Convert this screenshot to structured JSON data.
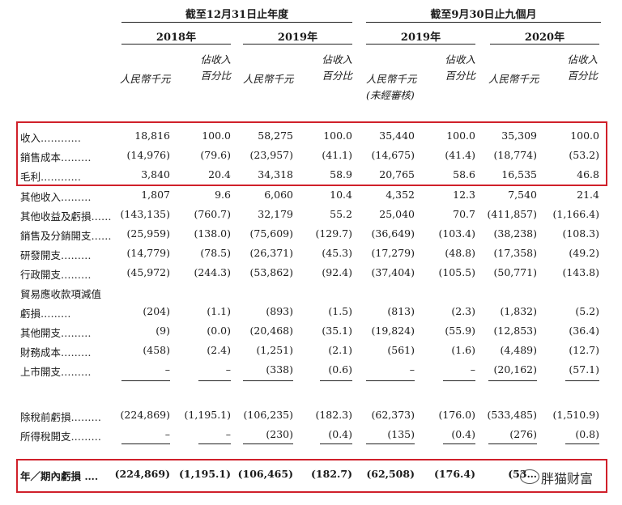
{
  "header": {
    "group1": "截至12月31日止年度",
    "group2": "截至9月30日止九個月",
    "years": [
      "2018年",
      "2019年",
      "2019年",
      "2020年"
    ]
  },
  "subheaders": [
    {
      "lines": [
        "人民幣千元"
      ]
    },
    {
      "lines": [
        "佔收入",
        "百分比"
      ]
    },
    {
      "lines": [
        "人民幣千元"
      ]
    },
    {
      "lines": [
        "佔收入",
        "百分比"
      ]
    },
    {
      "lines": [
        "人民幣千元",
        "(未經審核)"
      ]
    },
    {
      "lines": [
        "佔收入",
        "百分比"
      ]
    },
    {
      "lines": [
        "人民幣千元"
      ]
    },
    {
      "lines": [
        "佔收入",
        "百分比"
      ]
    }
  ],
  "rows": [
    {
      "label": "收入…………",
      "values": [
        "18,816",
        "100.0",
        "58,275",
        "100.0",
        "35,440",
        "100.0",
        "35,309",
        "100.0"
      ]
    },
    {
      "label": "銷售成本………",
      "values": [
        "(14,976)",
        "(79.6)",
        "(23,957)",
        "(41.1)",
        "(14,675)",
        "(41.4)",
        "(18,774)",
        "(53.2)"
      ]
    },
    {
      "label": "毛利…………",
      "values": [
        "3,840",
        "20.4",
        "34,318",
        "58.9",
        "20,765",
        "58.6",
        "16,535",
        "46.8"
      ]
    },
    {
      "label": "其他收入………",
      "values": [
        "1,807",
        "9.6",
        "6,060",
        "10.4",
        "4,352",
        "12.3",
        "7,540",
        "21.4"
      ]
    },
    {
      "label": "其他收益及虧損……",
      "values": [
        "(143,135)",
        "(760.7)",
        "32,179",
        "55.2",
        "25,040",
        "70.7",
        "(411,857)",
        "(1,166.4)"
      ]
    },
    {
      "label": "銷售及分銷開支……",
      "values": [
        "(25,959)",
        "(138.0)",
        "(75,609)",
        "(129.7)",
        "(36,649)",
        "(103.4)",
        "(38,238)",
        "(108.3)"
      ]
    },
    {
      "label": "研發開支………",
      "values": [
        "(14,779)",
        "(78.5)",
        "(26,371)",
        "(45.3)",
        "(17,279)",
        "(48.8)",
        "(17,358)",
        "(49.2)"
      ]
    },
    {
      "label": "行政開支………",
      "values": [
        "(45,972)",
        "(244.3)",
        "(53,862)",
        "(92.4)",
        "(37,404)",
        "(105.5)",
        "(50,771)",
        "(143.8)"
      ]
    },
    {
      "label": "貿易應收款項減值",
      "values": [
        "",
        "",
        "",
        "",
        "",
        "",
        "",
        ""
      ]
    },
    {
      "label": "  虧損………",
      "values": [
        "(204)",
        "(1.1)",
        "(893)",
        "(1.5)",
        "(813)",
        "(2.3)",
        "(1,832)",
        "(5.2)"
      ]
    },
    {
      "label": "其他開支………",
      "values": [
        "(9)",
        "(0.0)",
        "(20,468)",
        "(35.1)",
        "(19,824)",
        "(55.9)",
        "(12,853)",
        "(36.4)"
      ]
    },
    {
      "label": "財務成本………",
      "values": [
        "(458)",
        "(2.4)",
        "(1,251)",
        "(2.1)",
        "(561)",
        "(1.6)",
        "(4,489)",
        "(12.7)"
      ]
    },
    {
      "label": "上市開支………",
      "values": [
        "–",
        "–",
        "(338)",
        "(0.6)",
        "–",
        "–",
        "(20,162)",
        "(57.1)"
      ]
    },
    {
      "label": "除稅前虧損………",
      "values": [
        "(224,869)",
        "(1,195.1)",
        "(106,235)",
        "(182.3)",
        "(62,373)",
        "(176.0)",
        "(533,485)",
        "(1,510.9)"
      ]
    },
    {
      "label": "所得稅開支………",
      "values": [
        "–",
        "–",
        "(230)",
        "(0.4)",
        "(135)",
        "(0.4)",
        "(276)",
        "(0.8)"
      ]
    },
    {
      "label": "年／期內虧損 ….",
      "values": [
        "(224,869)",
        "(1,195.1)",
        "(106,465)",
        "(182.7)",
        "(62,508)",
        "(176.4)",
        "(53…",
        ""
      ]
    }
  ],
  "watermark": "胖猫财富",
  "highlight_color": "#d0202a"
}
